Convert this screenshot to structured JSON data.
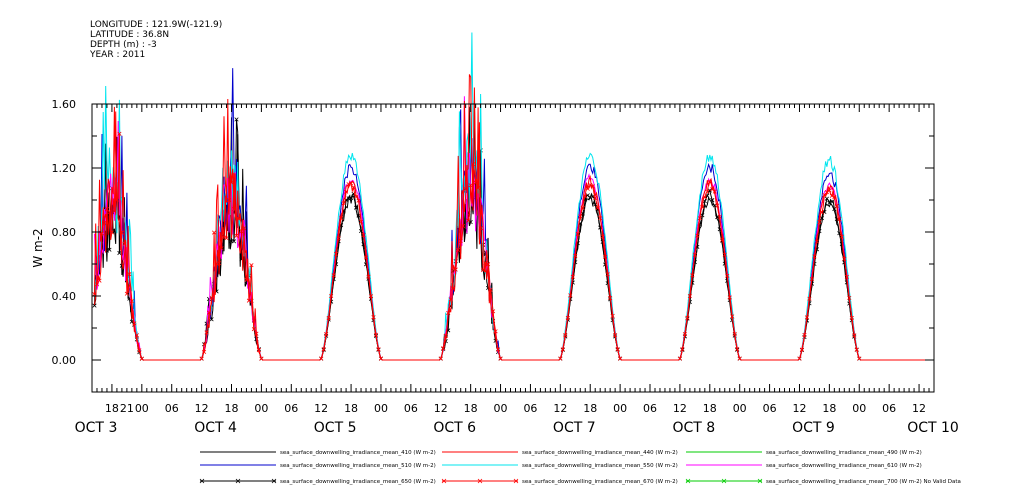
{
  "header": {
    "longitude": "LONGITUDE : 121.9W(-121.9)",
    "latitude": "LATITUDE : 36.8N",
    "depth": "DEPTH (m) : -3",
    "year": "YEAR : 2011"
  },
  "chart_data": {
    "type": "line",
    "title": "",
    "xlabel": "",
    "ylabel": "W m-2",
    "xlim_hours": [
      14,
      183
    ],
    "ylim": [
      -0.2,
      1.6
    ],
    "y_ticks": [
      "0.00",
      "0.40",
      "0.80",
      "1.20",
      "1.60"
    ],
    "x_hour_labels": [
      {
        "h": 18,
        "label": "18"
      },
      {
        "h": 21,
        "label": "21"
      },
      {
        "h": 24,
        "label": "00"
      },
      {
        "h": 30,
        "label": "06"
      },
      {
        "h": 36,
        "label": "12"
      },
      {
        "h": 42,
        "label": "18"
      },
      {
        "h": 48,
        "label": "00"
      },
      {
        "h": 54,
        "label": "06"
      },
      {
        "h": 60,
        "label": "12"
      },
      {
        "h": 66,
        "label": "18"
      },
      {
        "h": 72,
        "label": "00"
      },
      {
        "h": 78,
        "label": "06"
      },
      {
        "h": 84,
        "label": "12"
      },
      {
        "h": 90,
        "label": "18"
      },
      {
        "h": 96,
        "label": "00"
      },
      {
        "h": 102,
        "label": "06"
      },
      {
        "h": 108,
        "label": "12"
      },
      {
        "h": 114,
        "label": "18"
      },
      {
        "h": 120,
        "label": "00"
      },
      {
        "h": 126,
        "label": "06"
      },
      {
        "h": 132,
        "label": "12"
      },
      {
        "h": 138,
        "label": "18"
      },
      {
        "h": 144,
        "label": "00"
      },
      {
        "h": 150,
        "label": "06"
      },
      {
        "h": 156,
        "label": "12"
      },
      {
        "h": 162,
        "label": "18"
      },
      {
        "h": 168,
        "label": "00"
      },
      {
        "h": 174,
        "label": "06"
      },
      {
        "h": 180,
        "label": "12"
      }
    ],
    "x_day_labels": [
      {
        "h": 14,
        "label": "OCT  3"
      },
      {
        "h": 38,
        "label": "OCT  4"
      },
      {
        "h": 62,
        "label": "OCT  5"
      },
      {
        "h": 86,
        "label": "OCT  6"
      },
      {
        "h": 110,
        "label": "OCT  7"
      },
      {
        "h": 134,
        "label": "OCT  8"
      },
      {
        "h": 158,
        "label": "OCT  9"
      },
      {
        "h": 182,
        "label": "OCT 10"
      }
    ],
    "days": [
      {
        "noon": 18,
        "peak": 0.95,
        "noisy": true
      },
      {
        "noon": 42,
        "peak": 1.0,
        "noisy": true
      },
      {
        "noon": 66,
        "peak": 1.05,
        "noisy": false
      },
      {
        "noon": 90,
        "peak": 1.05,
        "noisy": true
      },
      {
        "noon": 114,
        "peak": 1.05,
        "noisy": false
      },
      {
        "noon": 138,
        "peak": 1.05,
        "noisy": false
      },
      {
        "noon": 162,
        "peak": 1.02,
        "noisy": false
      }
    ],
    "series": [
      {
        "name": "sea_surface_downwelling_irradiance_mean_410 (W m-2)",
        "color": "#000000",
        "scale": 0.96,
        "marker": "none"
      },
      {
        "name": "sea_surface_downwelling_irradiance_mean_440 (W m-2)",
        "color": "#ff0000",
        "scale": 1.06,
        "marker": "none"
      },
      {
        "name": "sea_surface_downwelling_irradiance_mean_490 (W m-2)",
        "color": "#00cc00",
        "scale": 1.12,
        "marker": "none"
      },
      {
        "name": "sea_surface_downwelling_irradiance_mean_510 (W m-2)",
        "color": "#0000cc",
        "scale": 1.15,
        "marker": "none"
      },
      {
        "name": "sea_surface_downwelling_irradiance_mean_550 (W m-2)",
        "color": "#00e5ee",
        "scale": 1.22,
        "marker": "none"
      },
      {
        "name": "sea_surface_downwelling_irradiance_mean_610 (W m-2)",
        "color": "#ff00ff",
        "scale": 1.08,
        "marker": "none"
      },
      {
        "name": "sea_surface_downwelling_irradiance_mean_650 (W m-2)",
        "color": "#000000",
        "scale": 0.98,
        "marker": "x"
      },
      {
        "name": "sea_surface_downwelling_irradiance_mean_670 (W m-2)",
        "color": "#ff0000",
        "scale": 1.04,
        "marker": "x"
      },
      {
        "name": "sea_surface_downwelling_irradiance_mean_700 (W m-2) No Valid Data",
        "color": "#00cc00",
        "scale": 0,
        "marker": "x"
      }
    ]
  }
}
